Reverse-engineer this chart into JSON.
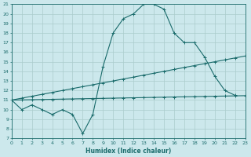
{
  "xlabel": "Humidex (Indice chaleur)",
  "bg_color": "#cce8ec",
  "line_color": "#1a6b6b",
  "grid_color": "#aacccc",
  "xmin": 0,
  "xmax": 23,
  "ymin": 7,
  "ymax": 21,
  "xticks": [
    0,
    1,
    2,
    3,
    4,
    5,
    6,
    7,
    8,
    9,
    10,
    11,
    12,
    13,
    14,
    15,
    16,
    17,
    18,
    19,
    20,
    21,
    22,
    23
  ],
  "yticks": [
    7,
    8,
    9,
    10,
    11,
    12,
    13,
    14,
    15,
    16,
    17,
    18,
    19,
    20,
    21
  ],
  "line1_x": [
    0,
    1,
    2,
    3,
    4,
    5,
    6,
    7,
    8,
    9,
    10,
    11,
    12,
    13,
    14,
    15,
    16,
    17,
    18,
    19,
    20,
    21,
    22
  ],
  "line1_y": [
    11,
    10,
    10.5,
    10,
    9.5,
    10,
    9.5,
    7.5,
    9.5,
    14.5,
    18,
    19.5,
    20,
    21,
    21,
    20.5,
    18,
    17,
    17,
    15.5,
    13.5,
    12,
    11.5
  ],
  "line2_x": [
    0,
    1,
    2,
    3,
    4,
    5,
    6,
    7,
    8,
    9,
    10,
    11,
    12,
    13,
    14,
    15,
    16,
    17,
    18,
    19,
    20,
    21,
    22,
    23
  ],
  "line2_y": [
    11,
    11.2,
    11.4,
    11.6,
    11.8,
    12.0,
    12.2,
    12.4,
    12.6,
    12.8,
    13.0,
    13.2,
    13.4,
    13.6,
    13.8,
    14.0,
    14.2,
    14.4,
    14.6,
    14.8,
    15.0,
    15.2,
    15.4,
    15.6
  ],
  "line3_x": [
    0,
    1,
    2,
    3,
    4,
    5,
    6,
    7,
    8,
    9,
    10,
    11,
    12,
    13,
    14,
    15,
    16,
    17,
    18,
    19,
    20,
    21,
    22,
    23
  ],
  "line3_y": [
    11,
    11.02,
    11.04,
    11.06,
    11.08,
    11.1,
    11.12,
    11.14,
    11.16,
    11.18,
    11.2,
    11.22,
    11.24,
    11.26,
    11.28,
    11.3,
    11.32,
    11.34,
    11.36,
    11.38,
    11.4,
    11.42,
    11.44,
    11.46
  ],
  "marker_size": 2.5,
  "linewidth": 0.8
}
